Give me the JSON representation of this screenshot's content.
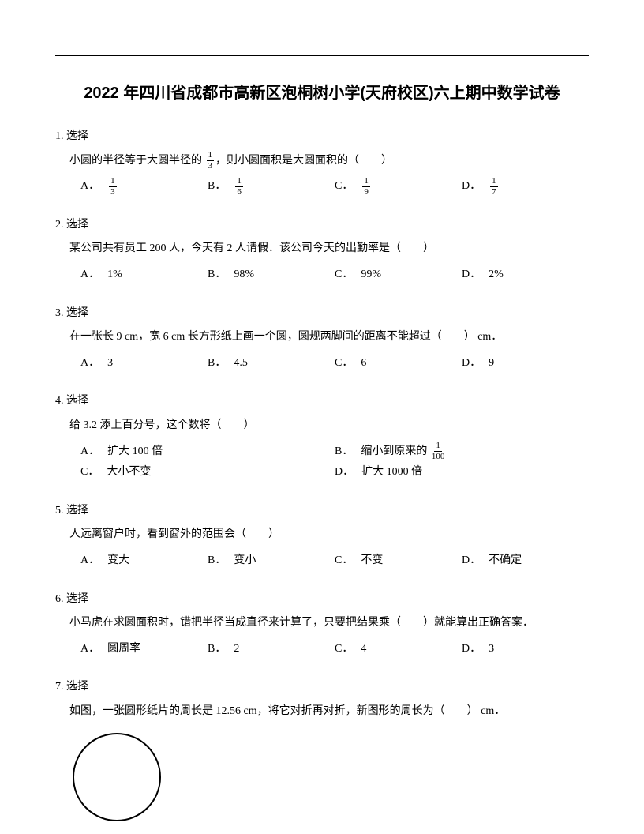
{
  "title": "2022 年四川省成都市高新区泡桐树小学(天府校区)六上期中数学试卷",
  "questions": [
    {
      "num": "1.",
      "type": "选择",
      "stem_parts": [
        "小圆的半径等于大圆半径的 ",
        {
          "frac": [
            "1",
            "3"
          ]
        },
        "，则小圆面积是大圆面积的（　　）"
      ],
      "layout": "4col",
      "indent": true,
      "options": [
        {
          "label": "A．",
          "frac": [
            "1",
            "3"
          ]
        },
        {
          "label": "B．",
          "frac": [
            "1",
            "6"
          ]
        },
        {
          "label": "C．",
          "frac": [
            "1",
            "9"
          ]
        },
        {
          "label": "D．",
          "frac": [
            "1",
            "7"
          ]
        }
      ]
    },
    {
      "num": "2.",
      "type": "选择",
      "stem_parts": [
        "某公司共有员工 200 人，今天有 2 人请假．该公司今天的出勤率是（　　）"
      ],
      "layout": "4col",
      "indent": true,
      "options": [
        {
          "label": "A．",
          "text": "1%"
        },
        {
          "label": "B．",
          "text": "98%"
        },
        {
          "label": "C．",
          "text": "99%"
        },
        {
          "label": "D．",
          "text": "2%"
        }
      ]
    },
    {
      "num": "3.",
      "type": "选择",
      "stem_parts": [
        "在一张长 9 cm，宽 6 cm 长方形纸上画一个圆，圆规两脚间的距离不能超过（　　） cm．"
      ],
      "layout": "4col",
      "indent": true,
      "options": [
        {
          "label": "A．",
          "text": "3"
        },
        {
          "label": "B．",
          "text": "4.5"
        },
        {
          "label": "C．",
          "text": "6"
        },
        {
          "label": "D．",
          "text": "9"
        }
      ]
    },
    {
      "num": "4.",
      "type": "选择",
      "stem_parts": [
        "给 3.2 添上百分号，这个数将（　　）"
      ],
      "layout": "2col",
      "options": [
        {
          "label": "A．",
          "text": "扩大 100 倍"
        },
        {
          "label": "B．",
          "text_parts": [
            "缩小到原来的 ",
            {
              "frac": [
                "1",
                "100"
              ]
            }
          ]
        },
        {
          "label": "C．",
          "text": "大小不变"
        },
        {
          "label": "D．",
          "text": "扩大 1000 倍"
        }
      ]
    },
    {
      "num": "5.",
      "type": "选择",
      "stem_parts": [
        "人远离窗户时，看到窗外的范围会（　　）"
      ],
      "layout": "4col",
      "indent": true,
      "options": [
        {
          "label": "A．",
          "text": "变大"
        },
        {
          "label": "B．",
          "text": "变小"
        },
        {
          "label": "C．",
          "text": "不变"
        },
        {
          "label": "D．",
          "text": "不确定"
        }
      ]
    },
    {
      "num": "6.",
      "type": "选择",
      "stem_parts": [
        "小马虎在求圆面积时，错把半径当成直径来计算了，只要把结果乘（　　）就能算出正确答案．"
      ],
      "layout": "4col",
      "indent": true,
      "options": [
        {
          "label": "A．",
          "text": "圆周率"
        },
        {
          "label": "B．",
          "text": "2"
        },
        {
          "label": "C．",
          "text": "4"
        },
        {
          "label": "D．",
          "text": "3"
        }
      ]
    },
    {
      "num": "7.",
      "type": "选择",
      "stem_parts": [
        "如图，一张圆形纸片的周长是 12.56 cm，将它对折再对折，新图形的周长为（　　） cm．"
      ],
      "has_circle": true,
      "circle": {
        "r": 55,
        "stroke": "#000000",
        "stroke_width": 2,
        "fill": "none"
      }
    }
  ]
}
